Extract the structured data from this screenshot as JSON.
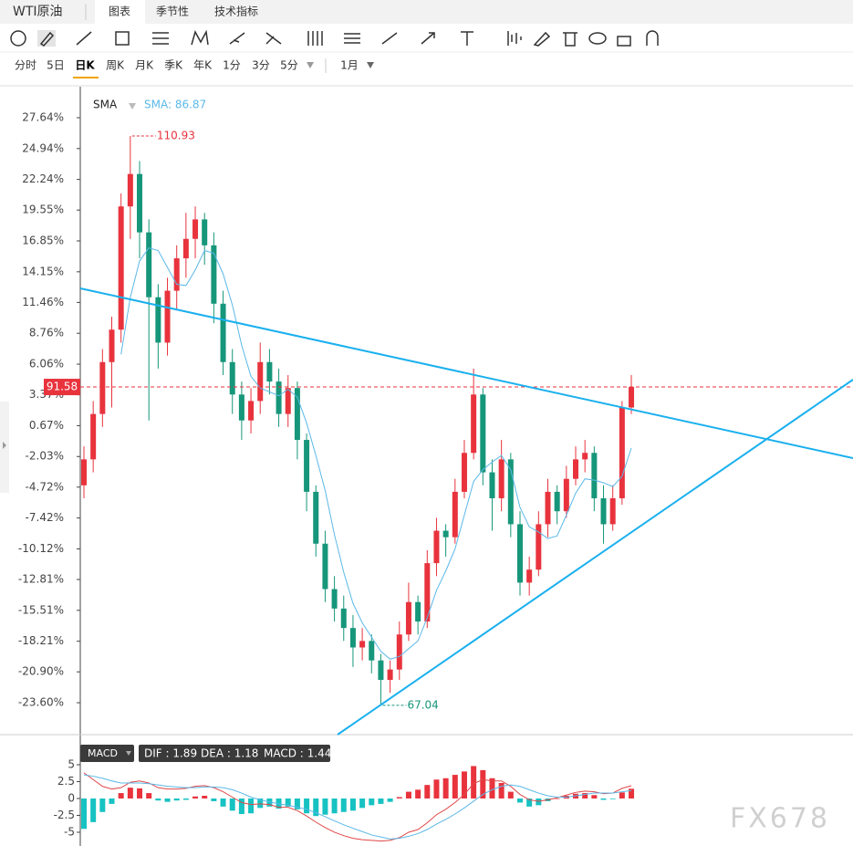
{
  "ui": {
    "symbol": "WTI原油",
    "tabs": [
      "图表",
      "季节性",
      "技术指标"
    ],
    "periods": [
      "分时",
      "5日",
      "日K",
      "周K",
      "月K",
      "季K",
      "年K",
      "1分",
      "3分",
      "5分"
    ],
    "range": "1月",
    "watermark": "FX678"
  },
  "chart_data": [
    {
      "type": "candlestick",
      "legend": "SMA",
      "sma_label": "SMA: 86.87",
      "ylim": [
        64.78,
        114.73
      ],
      "yticks": [
        {
          "value": 112.34,
          "label": "27.64%"
        },
        {
          "value": 109.96,
          "label": "24.94%"
        },
        {
          "value": 107.58,
          "label": "22.24%"
        },
        {
          "value": 105.22,
          "label": "19.55%"
        },
        {
          "value": 102.84,
          "label": "16.85%"
        },
        {
          "value": 100.46,
          "label": "14.15%"
        },
        {
          "value": 98.1,
          "label": "11.46%"
        },
        {
          "value": 95.72,
          "label": "8.76%"
        },
        {
          "value": 93.34,
          "label": "6.06%"
        },
        {
          "value": 90.98,
          "label": "3.37%"
        },
        {
          "value": 88.6,
          "label": "0.67%"
        },
        {
          "value": 86.22,
          "label": "-2.03%"
        },
        {
          "value": 83.86,
          "label": "-4.72%"
        },
        {
          "value": 81.48,
          "label": "-7.42%"
        },
        {
          "value": 79.1,
          "label": "-10.12%"
        },
        {
          "value": 76.74,
          "label": "-12.81%"
        },
        {
          "value": 74.36,
          "label": "-15.51%"
        },
        {
          "value": 71.98,
          "label": "-18.21%"
        },
        {
          "value": 69.62,
          "label": "-20.90%"
        },
        {
          "value": 67.24,
          "label": "-23.60%"
        }
      ],
      "high": 110.93,
      "low": 67.04,
      "last": 91.58,
      "up_color": "#e8333d",
      "down_color": "#16967a",
      "sma_color": "#5bb8e8",
      "ohlc": [
        [
          84.0,
          87.0,
          83.0,
          86.0
        ],
        [
          86.0,
          90.5,
          85.0,
          89.5
        ],
        [
          89.5,
          94.5,
          88.5,
          93.5
        ],
        [
          93.5,
          97.0,
          90.0,
          96.0
        ],
        [
          96.0,
          106.5,
          95.0,
          105.5
        ],
        [
          105.5,
          110.93,
          103.0,
          108.0
        ],
        [
          108.0,
          109.0,
          101.5,
          103.5
        ],
        [
          103.5,
          104.5,
          89.0,
          98.5
        ],
        [
          98.5,
          99.5,
          93.0,
          95.0
        ],
        [
          95.0,
          100.0,
          94.0,
          99.0
        ],
        [
          99.0,
          102.5,
          97.5,
          101.5
        ],
        [
          101.5,
          105.0,
          100.0,
          103.0
        ],
        [
          103.0,
          105.5,
          101.5,
          104.5
        ],
        [
          104.5,
          105.0,
          101.0,
          102.5
        ],
        [
          102.5,
          103.5,
          96.5,
          98.0
        ],
        [
          98.0,
          99.0,
          92.5,
          93.5
        ],
        [
          93.5,
          94.5,
          89.5,
          91.0
        ],
        [
          91.0,
          92.0,
          87.5,
          89.0
        ],
        [
          89.0,
          91.5,
          88.0,
          90.5
        ],
        [
          90.5,
          95.0,
          89.5,
          93.5
        ],
        [
          93.5,
          94.5,
          91.0,
          92.0
        ],
        [
          92.0,
          93.0,
          88.5,
          89.5
        ],
        [
          89.5,
          92.5,
          88.5,
          91.5
        ],
        [
          91.5,
          92.0,
          86.0,
          87.5
        ],
        [
          87.5,
          88.0,
          82.0,
          83.5
        ],
        [
          83.5,
          84.0,
          78.5,
          79.5
        ],
        [
          79.5,
          80.5,
          75.0,
          76.0
        ],
        [
          76.0,
          77.0,
          73.5,
          74.5
        ],
        [
          74.5,
          75.5,
          72.0,
          73.0
        ],
        [
          73.0,
          74.0,
          70.0,
          71.5
        ],
        [
          71.5,
          73.0,
          70.5,
          72.0
        ],
        [
          72.0,
          72.5,
          69.5,
          70.5
        ],
        [
          70.5,
          71.0,
          67.04,
          69.0
        ],
        [
          69.0,
          70.5,
          68.0,
          69.8
        ],
        [
          69.8,
          73.5,
          69.0,
          72.5
        ],
        [
          72.5,
          76.5,
          72.0,
          75.0
        ],
        [
          75.0,
          75.5,
          72.5,
          73.5
        ],
        [
          73.5,
          79.0,
          73.0,
          78.0
        ],
        [
          78.0,
          81.5,
          77.0,
          80.5
        ],
        [
          80.5,
          81.0,
          78.5,
          80.0
        ],
        [
          80.0,
          84.5,
          79.5,
          83.5
        ],
        [
          83.5,
          87.5,
          83.0,
          86.5
        ],
        [
          86.5,
          93.0,
          86.0,
          91.0
        ],
        [
          91.0,
          91.5,
          84.0,
          85.0
        ],
        [
          85.0,
          86.0,
          80.5,
          83.0
        ],
        [
          83.0,
          87.5,
          82.0,
          86.0
        ],
        [
          86.0,
          86.5,
          80.0,
          81.0
        ],
        [
          81.0,
          82.0,
          75.5,
          76.5
        ],
        [
          76.5,
          78.5,
          75.5,
          77.5
        ],
        [
          77.5,
          82.0,
          77.0,
          81.0
        ],
        [
          81.0,
          84.5,
          80.0,
          83.5
        ],
        [
          83.5,
          84.0,
          81.0,
          82.0
        ],
        [
          82.0,
          85.5,
          81.5,
          84.5
        ],
        [
          84.5,
          87.0,
          84.0,
          86.0
        ],
        [
          86.0,
          87.5,
          85.0,
          86.5
        ],
        [
          86.5,
          87.0,
          82.0,
          83.0
        ],
        [
          83.0,
          84.0,
          79.5,
          81.0
        ],
        [
          81.0,
          84.0,
          80.5,
          83.0
        ],
        [
          83.0,
          90.5,
          82.5,
          90.0
        ],
        [
          90.0,
          92.5,
          89.5,
          91.58
        ]
      ],
      "sma": [
        null,
        null,
        null,
        null,
        94.1,
        98.5,
        101.3,
        102.3,
        102.1,
        100.8,
        99.5,
        99.4,
        100.6,
        102.1,
        101.9,
        100.3,
        97.9,
        94.8,
        92.4,
        91.5,
        91.2,
        90.9,
        91.4,
        90.8,
        88.8,
        86.3,
        83.6,
        80.2,
        77.3,
        74.9,
        73.4,
        72.3,
        71.2,
        70.6,
        70.8,
        71.4,
        72.0,
        73.8,
        75.9,
        77.4,
        79.1,
        81.7,
        84.3,
        85.2,
        85.8,
        86.3,
        85.2,
        82.3,
        80.8,
        80.4,
        79.9,
        80.1,
        81.7,
        83.4,
        84.5,
        84.4,
        84.2,
        83.9,
        84.7,
        86.87
      ]
    },
    {
      "type": "macd",
      "legend": "MACD",
      "legend_values": [
        "DIF : 1.89",
        "DEA : 1.18",
        "MACD : 1.44"
      ],
      "ylim": [
        -7.03,
        8.51
      ],
      "yticks": [
        5,
        2.5,
        0,
        -2.5,
        -5
      ],
      "series": [
        {
          "name": "MACD",
          "color": "#e8333d",
          "neg_color": "#17c2c2",
          "values": [
            -4.5,
            -3.5,
            -2,
            -0.8,
            0.8,
            1.6,
            1.5,
            0.8,
            -0.3,
            -0.5,
            -0.3,
            -0.2,
            0.3,
            0.4,
            -0.4,
            -1.2,
            -1.8,
            -2.3,
            -2.2,
            -1.4,
            -1.2,
            -1.5,
            -1.2,
            -1.6,
            -2.2,
            -2.6,
            -2.4,
            -2.2,
            -2.0,
            -1.8,
            -1.4,
            -1.0,
            -0.8,
            -0.5,
            0.2,
            1.0,
            1.3,
            2.0,
            2.8,
            3.0,
            3.5,
            4.0,
            4.8,
            4.2,
            3.0,
            2.3,
            1.0,
            -0.6,
            -1.2,
            -1.0,
            -0.4,
            0,
            0.4,
            0.7,
            0.8,
            0.5,
            -0.2,
            -0.1,
            0.9,
            1.44
          ]
        },
        {
          "name": "DIF",
          "color": "#e04848",
          "values": [
            3.8,
            2.8,
            1.8,
            1.4,
            1.6,
            2.4,
            2.6,
            2.3,
            1.6,
            1.4,
            1.4,
            1.5,
            1.8,
            1.9,
            1.6,
            1.0,
            0.2,
            -0.6,
            -0.9,
            -0.8,
            -0.9,
            -1.3,
            -1.3,
            -1.8,
            -2.6,
            -3.5,
            -4.3,
            -5.0,
            -5.5,
            -5.9,
            -6.1,
            -6.2,
            -6.3,
            -6.2,
            -5.8,
            -5.0,
            -4.6,
            -3.6,
            -2.4,
            -1.6,
            -0.6,
            0.6,
            2.2,
            2.8,
            2.6,
            2.6,
            1.8,
            0.6,
            -0.2,
            -0.4,
            -0.2,
            0.1,
            0.5,
            0.9,
            1.1,
            1.0,
            0.7,
            0.8,
            1.5,
            1.89
          ]
        },
        {
          "name": "DEA",
          "color": "#5bb8e8",
          "values": [
            3.5,
            3.3,
            3.0,
            2.6,
            2.3,
            2.3,
            2.3,
            2.2,
            2.0,
            1.8,
            1.7,
            1.6,
            1.6,
            1.7,
            1.7,
            1.6,
            1.3,
            0.8,
            0.2,
            -0.2,
            -0.5,
            -0.8,
            -1.0,
            -1.3,
            -1.6,
            -2.1,
            -2.7,
            -3.3,
            -3.9,
            -4.4,
            -4.9,
            -5.4,
            -5.7,
            -6.0,
            -5.9,
            -5.6,
            -5.2,
            -4.6,
            -3.8,
            -3.1,
            -2.3,
            -1.4,
            -0.4,
            0.6,
            1.3,
            1.8,
            2.0,
            1.8,
            1.3,
            0.8,
            0.4,
            0.2,
            0.2,
            0.4,
            0.6,
            0.8,
            0.8,
            0.8,
            1.0,
            1.18
          ]
        }
      ]
    }
  ]
}
